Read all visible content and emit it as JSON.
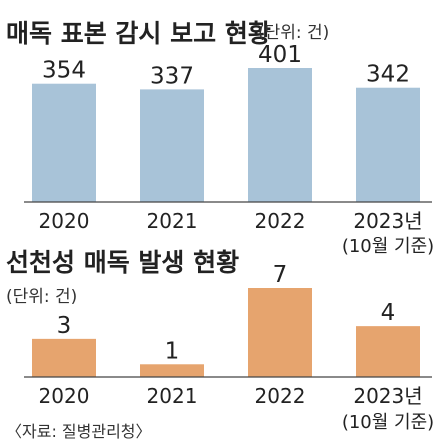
{
  "chart_data": [
    {
      "type": "bar",
      "title": "매독 표본 감시 보고 현황",
      "unit": "(단위: 건)",
      "categories": [
        "2020",
        "2021",
        "2022",
        "2023년"
      ],
      "category_notes": [
        "",
        "",
        "",
        "(10월 기준)"
      ],
      "values": [
        354,
        337,
        401,
        342
      ],
      "value_labels": [
        "354",
        "337",
        "401",
        "342"
      ],
      "ylim": [
        0,
        401
      ],
      "color": "#a8c3d8"
    },
    {
      "type": "bar",
      "title": "선천성 매독 발생 현황",
      "unit": "(단위: 건)",
      "categories": [
        "2020",
        "2021",
        "2022",
        "2023년"
      ],
      "category_notes": [
        "",
        "",
        "",
        "(10월 기준)"
      ],
      "values": [
        3,
        1,
        7,
        4
      ],
      "value_labels": [
        "3",
        "1",
        "7",
        "4"
      ],
      "ylim": [
        0,
        7
      ],
      "color": "#e6a46e"
    }
  ],
  "source": "〈자료: 질병관리청〉"
}
